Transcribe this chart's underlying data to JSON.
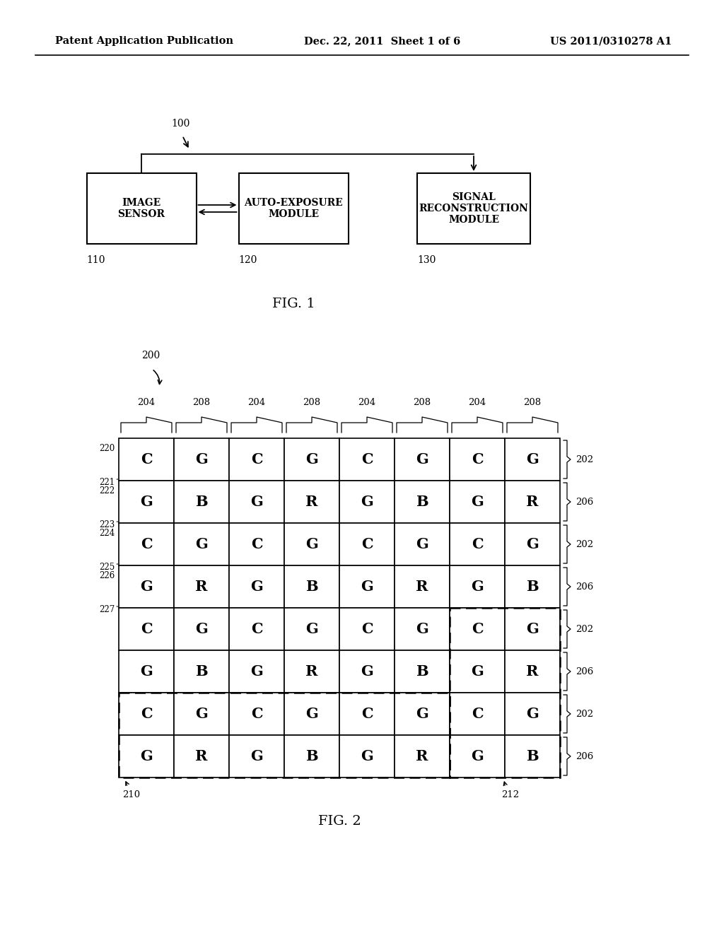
{
  "header_left": "Patent Application Publication",
  "header_center": "Dec. 22, 2011  Sheet 1 of 6",
  "header_right": "US 2011/0310278 A1",
  "fig1_label": "FIG. 1",
  "fig2_label": "FIG. 2",
  "box1_label": "IMAGE\nSENSOR",
  "box1_num": "110",
  "box2_label": "AUTO-EXPOSURE\nMODULE",
  "box2_num": "120",
  "box3_label": "SIGNAL\nRECONSTRUCTION\nMODULE",
  "box3_num": "130",
  "system_num": "100",
  "grid_num": "200",
  "col_labels_top": [
    "204",
    "208",
    "204",
    "208",
    "204",
    "208",
    "204",
    "208"
  ],
  "row_labels_left": [
    "220",
    "221",
    "222",
    "223",
    "224",
    "225",
    "226",
    "227"
  ],
  "grid_data": [
    [
      "C",
      "G",
      "C",
      "G",
      "C",
      "G",
      "C",
      "G"
    ],
    [
      "G",
      "B",
      "G",
      "R",
      "G",
      "B",
      "G",
      "R"
    ],
    [
      "C",
      "G",
      "C",
      "G",
      "C",
      "G",
      "C",
      "G"
    ],
    [
      "G",
      "R",
      "G",
      "B",
      "G",
      "R",
      "G",
      "B"
    ],
    [
      "C",
      "G",
      "C",
      "G",
      "C",
      "G",
      "C",
      "G"
    ],
    [
      "G",
      "B",
      "G",
      "R",
      "G",
      "B",
      "G",
      "R"
    ],
    [
      "C",
      "G",
      "C",
      "G",
      "C",
      "G",
      "C",
      "G"
    ],
    [
      "G",
      "R",
      "G",
      "B",
      "G",
      "R",
      "G",
      "B"
    ]
  ],
  "row_right_labels": [
    "202",
    "206",
    "202",
    "206",
    "202",
    "206",
    "202",
    "206"
  ],
  "label_210": "210",
  "label_212": "212",
  "bg_color": "#ffffff",
  "fg_color": "#000000"
}
